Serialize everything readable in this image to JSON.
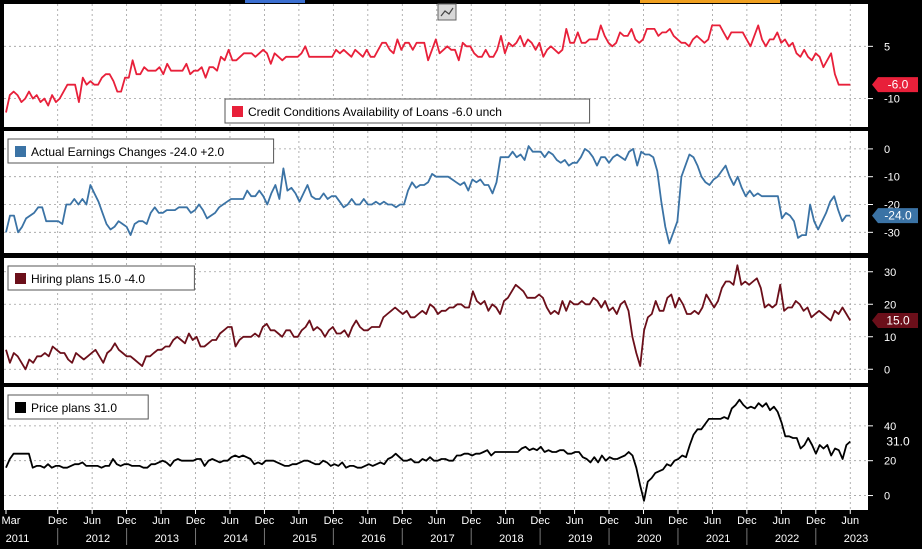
{
  "colors": {
    "panel_bg": "#ffffff",
    "frame": "#000000",
    "grid": "#9e9e9e",
    "credit": "#e8203a",
    "earnings": "#3b73a5",
    "hiring": "#6b0f1a",
    "price": "#000000",
    "badge_black": "#000000"
  },
  "toolbar_icon": "chart-icon",
  "x_axis": {
    "months": [
      "Mar",
      "Dec",
      "Jun",
      "Dec",
      "Jun",
      "Dec",
      "Jun",
      "Dec",
      "Jun",
      "Dec",
      "Jun",
      "Dec",
      "Jun",
      "Dec",
      "Jun",
      "Dec",
      "Jun",
      "Dec",
      "Jun",
      "Dec",
      "Jun",
      "Dec",
      "Jun",
      "Dec",
      "Jun"
    ],
    "years": [
      "2011",
      "2012",
      "2013",
      "2014",
      "2015",
      "2016",
      "2017",
      "2018",
      "2019",
      "2020",
      "2021",
      "2022",
      "2023"
    ]
  },
  "chart_data": [
    {
      "type": "line",
      "panel": "credit",
      "series": [
        {
          "name": "Credit Conditions Availability of Loans",
          "last": "-6.0",
          "change": "unch",
          "values": [
            -14,
            -9,
            -8,
            -9,
            -11,
            -10,
            -8,
            -10,
            -9,
            -11,
            -10,
            -12,
            -9,
            -11,
            -10,
            -8,
            -6,
            -6,
            -6,
            -11,
            -4,
            -6,
            -5,
            -6,
            -6,
            -4,
            -3,
            -3,
            -5,
            -8,
            -8,
            -4,
            -4,
            1,
            -3,
            -3,
            -1,
            -2,
            -2,
            -2,
            -1,
            -3,
            0,
            -2,
            -2,
            -2,
            -2,
            0,
            -3,
            -2,
            -2,
            -1,
            -4,
            -1,
            -1,
            -2,
            2,
            1,
            4,
            1,
            1,
            2,
            3,
            3,
            3,
            2,
            3,
            4,
            3,
            0,
            3,
            2,
            1,
            2,
            2,
            2,
            2,
            3,
            5,
            2,
            2,
            2,
            2,
            2,
            2,
            2,
            4,
            3,
            4,
            3,
            2,
            4,
            3,
            2,
            4,
            2,
            2,
            4,
            6,
            6,
            4,
            3,
            7,
            4,
            6,
            6,
            4,
            6,
            6,
            6,
            1,
            4,
            7,
            3,
            4,
            5,
            4,
            4,
            1,
            6,
            5,
            5,
            3,
            2,
            2,
            4,
            2,
            2,
            4,
            8,
            3,
            6,
            5,
            6,
            8,
            5,
            7,
            6,
            4,
            6,
            2,
            4,
            5,
            4,
            3,
            4,
            10,
            6,
            6,
            9,
            6,
            6,
            7,
            7,
            7,
            11,
            8,
            6,
            5,
            6,
            9,
            8,
            8,
            10,
            7,
            6,
            7,
            10,
            10,
            10,
            8,
            9,
            9,
            10,
            8,
            7,
            6,
            6,
            5,
            7,
            8,
            7,
            6,
            7,
            11,
            11,
            11,
            9,
            7,
            9,
            9,
            9,
            9,
            7,
            5,
            8,
            11,
            7,
            5,
            7,
            7,
            9,
            6,
            7,
            5,
            6,
            3,
            2,
            4,
            2,
            1,
            3,
            2,
            -1,
            1,
            3,
            -3,
            -6,
            -6,
            -6,
            -6
          ]
        }
      ],
      "y_ticks": [
        "5",
        "-10"
      ],
      "ylim": [
        -17,
        16
      ]
    },
    {
      "type": "line",
      "panel": "earnings",
      "series": [
        {
          "name": "Actual Earnings Changes",
          "last": "-24.0",
          "change": "+2.0",
          "values": [
            -30,
            -24,
            -24,
            -30,
            -28,
            -25,
            -24,
            -23,
            -21,
            -21,
            -26,
            -26,
            -26,
            -26,
            -27,
            -20,
            -20,
            -18,
            -20,
            -18,
            -20,
            -13,
            -16,
            -19,
            -23,
            -27,
            -29,
            -28,
            -26,
            -27,
            -28,
            -31,
            -27,
            -26,
            -26,
            -27,
            -23,
            -21,
            -23,
            -23,
            -22,
            -22,
            -22,
            -21,
            -21,
            -21,
            -23,
            -22,
            -20,
            -22,
            -25,
            -24,
            -23,
            -21,
            -20,
            -19,
            -18,
            -18,
            -18,
            -18,
            -15,
            -17,
            -17,
            -15,
            -17,
            -20,
            -16,
            -13,
            -18,
            -7,
            -15,
            -14,
            -16,
            -19,
            -16,
            -13,
            -17,
            -18,
            -18,
            -16,
            -18,
            -17,
            -17,
            -19,
            -21,
            -20,
            -18,
            -20,
            -20,
            -18,
            -20,
            -20,
            -19,
            -20,
            -19,
            -20,
            -20,
            -21,
            -20,
            -20,
            -15,
            -12,
            -14,
            -13,
            -13,
            -12,
            -9,
            -10,
            -10,
            -10,
            -10,
            -11,
            -12,
            -13,
            -12,
            -15,
            -11,
            -12,
            -11,
            -13,
            -13,
            -16,
            -12,
            -3,
            -3,
            -3,
            -1,
            -3,
            -2,
            -4,
            1,
            -1,
            -1,
            -1,
            -3,
            -1,
            -2,
            -4,
            -5,
            -4,
            -6,
            -5,
            -5,
            -3,
            0,
            -1,
            -3,
            -6,
            -3,
            -3,
            -5,
            -3,
            -2,
            -3,
            -4,
            -1,
            0,
            -6,
            -1,
            -2,
            -2,
            -3,
            -8,
            -19,
            -28,
            -34,
            -30,
            -26,
            -10,
            -6,
            -2,
            -3,
            -6,
            -10,
            -12,
            -13,
            -11,
            -10,
            -8,
            -6,
            -10,
            -13,
            -10,
            -14,
            -17,
            -15,
            -17,
            -16,
            -17,
            -17,
            -17,
            -17,
            -17,
            -25,
            -23,
            -24,
            -26,
            -32,
            -31,
            -31,
            -20,
            -26,
            -29,
            -26,
            -23,
            -19,
            -17,
            -22,
            -26,
            -24,
            -24
          ]
        }
      ],
      "y_ticks": [
        "0",
        "-10",
        "-20",
        "-30"
      ],
      "ylim": [
        -36,
        5
      ]
    },
    {
      "type": "line",
      "panel": "hiring",
      "series": [
        {
          "name": "Hiring plans",
          "last": "15.0",
          "change": "-4.0",
          "values": [
            6,
            2,
            5,
            4,
            2,
            0,
            3,
            2,
            4,
            4,
            5,
            4,
            7,
            6,
            5,
            5,
            3,
            2,
            5,
            4,
            3,
            4,
            5,
            6,
            4,
            2,
            5,
            6,
            8,
            6,
            5,
            4,
            4,
            3,
            2,
            1,
            4,
            4,
            5,
            6,
            6,
            7,
            7,
            9,
            10,
            9,
            8,
            11,
            9,
            10,
            7,
            7,
            8,
            9,
            9,
            11,
            12,
            13,
            13,
            7,
            9,
            10,
            10,
            10,
            11,
            10,
            13,
            14,
            12,
            12,
            11,
            10,
            12,
            12,
            10,
            10,
            12,
            13,
            15,
            12,
            13,
            12,
            10,
            12,
            13,
            11,
            11,
            12,
            10,
            13,
            15,
            13,
            12,
            12,
            13,
            13,
            13,
            16,
            17,
            18,
            19,
            18,
            17,
            18,
            16,
            16,
            17,
            18,
            17,
            20,
            19,
            17,
            18,
            18,
            19,
            19,
            20,
            20,
            19,
            19,
            24,
            21,
            20,
            21,
            18,
            20,
            19,
            17,
            21,
            22,
            24,
            26,
            25,
            24,
            22,
            22,
            22,
            23,
            22,
            19,
            17,
            18,
            17,
            21,
            18,
            21,
            20,
            20,
            21,
            20,
            20,
            22,
            21,
            19,
            21,
            18,
            19,
            17,
            20,
            21,
            18,
            10,
            5,
            1,
            12,
            16,
            17,
            21,
            18,
            18,
            22,
            23,
            19,
            22,
            20,
            17,
            17,
            18,
            17,
            19,
            23,
            21,
            19,
            21,
            25,
            27,
            27,
            26,
            32,
            26,
            27,
            26,
            27,
            28,
            25,
            19,
            20,
            19,
            20,
            26,
            18,
            19,
            19,
            21,
            20,
            18,
            19,
            16,
            17,
            18,
            17,
            16,
            15,
            18,
            17,
            19,
            17,
            15
          ]
        }
      ],
      "y_ticks": [
        "30",
        "20",
        "10",
        "0"
      ],
      "ylim": [
        -3,
        33
      ]
    },
    {
      "type": "line",
      "panel": "price",
      "series": [
        {
          "name": "Price plans",
          "last": "31.0",
          "values": [
            16,
            21,
            24,
            24,
            24,
            24,
            24,
            16,
            17,
            17,
            16,
            18,
            16,
            17,
            17,
            16,
            16,
            17,
            18,
            18,
            19,
            17,
            17,
            17,
            17,
            16,
            17,
            17,
            21,
            18,
            17,
            18,
            18,
            17,
            17,
            17,
            16,
            16,
            18,
            18,
            19,
            20,
            19,
            17,
            20,
            21,
            20,
            20,
            20,
            20,
            21,
            21,
            17,
            20,
            21,
            20,
            19,
            20,
            20,
            22,
            23,
            22,
            23,
            22,
            21,
            18,
            19,
            18,
            20,
            20,
            20,
            19,
            18,
            17,
            17,
            18,
            18,
            19,
            20,
            20,
            19,
            18,
            18,
            20,
            19,
            17,
            18,
            17,
            19,
            16,
            17,
            17,
            16,
            16,
            17,
            18,
            17,
            18,
            19,
            18,
            21,
            22,
            24,
            22,
            20,
            20,
            21,
            19,
            19,
            21,
            20,
            22,
            20,
            20,
            21,
            21,
            20,
            20,
            23,
            23,
            24,
            24,
            23,
            24,
            24,
            25,
            26,
            23,
            25,
            25,
            25,
            25,
            25,
            25,
            25,
            27,
            28,
            26,
            27,
            26,
            28,
            25,
            26,
            25,
            25,
            26,
            26,
            24,
            24,
            25,
            25,
            22,
            21,
            19,
            22,
            19,
            23,
            20,
            22,
            21,
            21,
            22,
            23,
            25,
            23,
            16,
            6,
            -3,
            8,
            10,
            13,
            14,
            15,
            18,
            17,
            20,
            21,
            23,
            22,
            29,
            35,
            38,
            38,
            41,
            44,
            44,
            44,
            44,
            45,
            44,
            50,
            52,
            55,
            52,
            50,
            51,
            50,
            53,
            51,
            53,
            49,
            51,
            48,
            42,
            34,
            34,
            33,
            33,
            27,
            29,
            33,
            29,
            24,
            29,
            27,
            29,
            23,
            27,
            26,
            21,
            29,
            31
          ]
        }
      ],
      "y_ticks": [
        "40",
        "20",
        "0"
      ],
      "ylim": [
        -6,
        60
      ]
    }
  ]
}
